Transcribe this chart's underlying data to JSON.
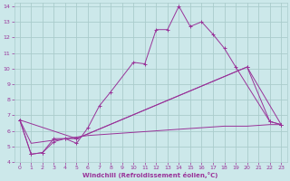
{
  "xlabel": "Windchill (Refroidissement éolien,°C)",
  "background_color": "#cce8ea",
  "grid_color": "#aacccc",
  "line_color": "#993399",
  "xlim": [
    -0.5,
    23.5
  ],
  "ylim": [
    4,
    14.2
  ],
  "yticks": [
    4,
    5,
    6,
    7,
    8,
    9,
    10,
    11,
    12,
    13,
    14
  ],
  "xticks": [
    0,
    1,
    2,
    3,
    4,
    5,
    6,
    7,
    8,
    9,
    10,
    11,
    12,
    13,
    14,
    15,
    16,
    17,
    18,
    19,
    20,
    21,
    22,
    23
  ],
  "line1_x": [
    0,
    1,
    2,
    3,
    4,
    5,
    6,
    7,
    8,
    10,
    11,
    12,
    13,
    14,
    15,
    16,
    17,
    18,
    19,
    22,
    23
  ],
  "line1_y": [
    6.7,
    4.5,
    4.6,
    5.5,
    5.5,
    5.2,
    6.2,
    7.6,
    8.5,
    10.4,
    10.3,
    12.5,
    12.5,
    14.0,
    12.7,
    13.0,
    12.2,
    11.3,
    10.1,
    6.6,
    6.4
  ],
  "line2_x": [
    0,
    1,
    2,
    3,
    4,
    5,
    20,
    22,
    23
  ],
  "line2_y": [
    6.7,
    4.5,
    4.6,
    5.3,
    5.5,
    5.5,
    10.1,
    6.6,
    6.4
  ],
  "line3_x": [
    0,
    5,
    20,
    23
  ],
  "line3_y": [
    6.7,
    5.5,
    10.1,
    6.4
  ],
  "line4_x": [
    0,
    1,
    2,
    3,
    4,
    5,
    6,
    7,
    8,
    9,
    10,
    11,
    12,
    13,
    14,
    15,
    16,
    17,
    18,
    19,
    20,
    21,
    22,
    23
  ],
  "line4_y": [
    6.7,
    5.2,
    5.3,
    5.4,
    5.5,
    5.6,
    5.7,
    5.75,
    5.8,
    5.85,
    5.9,
    5.95,
    6.0,
    6.05,
    6.1,
    6.15,
    6.2,
    6.25,
    6.3,
    6.3,
    6.3,
    6.35,
    6.4,
    6.4
  ]
}
